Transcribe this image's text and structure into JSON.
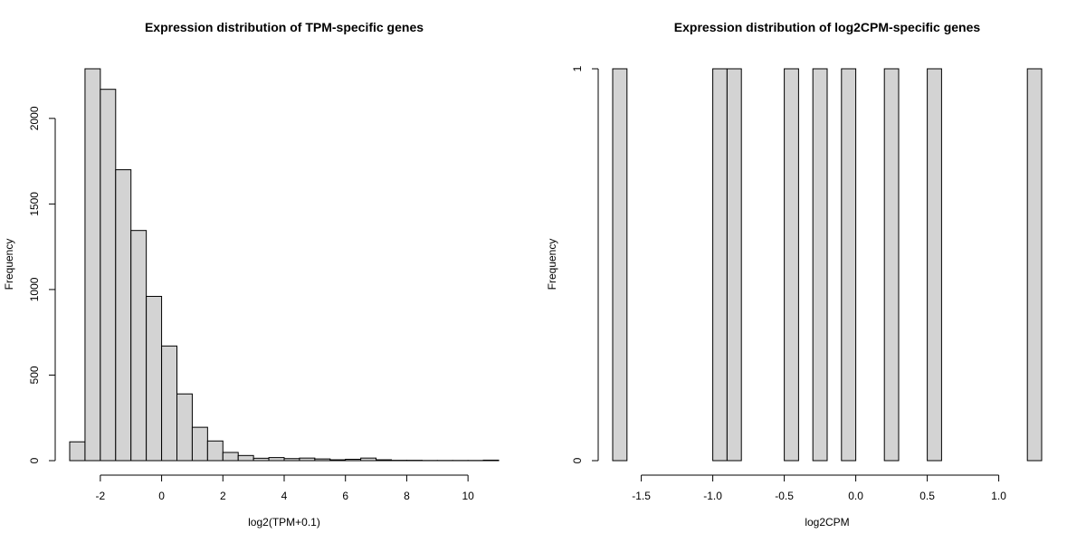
{
  "chart_data": [
    {
      "type": "bar",
      "title": "Expression distribution of TPM-specific genes",
      "xlabel": "log2(TPM+0.1)",
      "ylabel": "Frequency",
      "bin_width": 0.5,
      "bins": [
        {
          "start": -3.0,
          "count": 110
        },
        {
          "start": -2.5,
          "count": 2290
        },
        {
          "start": -2.0,
          "count": 2170
        },
        {
          "start": -1.5,
          "count": 1700
        },
        {
          "start": -1.0,
          "count": 1345
        },
        {
          "start": -0.5,
          "count": 960
        },
        {
          "start": 0.0,
          "count": 670
        },
        {
          "start": 0.5,
          "count": 390
        },
        {
          "start": 1.0,
          "count": 195
        },
        {
          "start": 1.5,
          "count": 115
        },
        {
          "start": 2.0,
          "count": 48
        },
        {
          "start": 2.5,
          "count": 30
        },
        {
          "start": 3.0,
          "count": 14
        },
        {
          "start": 3.5,
          "count": 18
        },
        {
          "start": 4.0,
          "count": 12
        },
        {
          "start": 4.5,
          "count": 15
        },
        {
          "start": 5.0,
          "count": 10
        },
        {
          "start": 5.5,
          "count": 5
        },
        {
          "start": 6.0,
          "count": 8
        },
        {
          "start": 6.5,
          "count": 15
        },
        {
          "start": 7.0,
          "count": 5
        },
        {
          "start": 7.5,
          "count": 2
        },
        {
          "start": 8.0,
          "count": 2
        },
        {
          "start": 8.5,
          "count": 1
        },
        {
          "start": 9.0,
          "count": 1
        },
        {
          "start": 9.5,
          "count": 1
        },
        {
          "start": 10.0,
          "count": 1
        },
        {
          "start": 10.5,
          "count": 3
        }
      ],
      "xlim": [
        -3.0,
        11.0
      ],
      "ylim": [
        0,
        2290
      ],
      "x_ticks": [
        -2,
        0,
        2,
        4,
        6,
        8,
        10
      ],
      "x_tick_labels": [
        "-2",
        "0",
        "2",
        "4",
        "6",
        "8",
        "10"
      ],
      "y_ticks": [
        0,
        500,
        1000,
        1500,
        2000
      ],
      "y_tick_labels": [
        "0",
        "500",
        "1000",
        "1500",
        "2000"
      ],
      "grid": false
    },
    {
      "type": "bar",
      "title": "Expression distribution of log2CPM-specific genes",
      "xlabel": "log2CPM",
      "ylabel": "Frequency",
      "bin_width": 0.1,
      "bins": [
        {
          "start": -1.7,
          "count": 1
        },
        {
          "start": -1.6,
          "count": 0
        },
        {
          "start": -1.5,
          "count": 0
        },
        {
          "start": -1.4,
          "count": 0
        },
        {
          "start": -1.3,
          "count": 0
        },
        {
          "start": -1.2,
          "count": 0
        },
        {
          "start": -1.1,
          "count": 0
        },
        {
          "start": -1.0,
          "count": 1
        },
        {
          "start": -0.9,
          "count": 1
        },
        {
          "start": -0.8,
          "count": 0
        },
        {
          "start": -0.7,
          "count": 0
        },
        {
          "start": -0.6,
          "count": 0
        },
        {
          "start": -0.5,
          "count": 1
        },
        {
          "start": -0.4,
          "count": 0
        },
        {
          "start": -0.3,
          "count": 1
        },
        {
          "start": -0.2,
          "count": 0
        },
        {
          "start": -0.1,
          "count": 1
        },
        {
          "start": 0.0,
          "count": 0
        },
        {
          "start": 0.1,
          "count": 0
        },
        {
          "start": 0.2,
          "count": 1
        },
        {
          "start": 0.3,
          "count": 0
        },
        {
          "start": 0.4,
          "count": 0
        },
        {
          "start": 0.5,
          "count": 1
        },
        {
          "start": 0.6,
          "count": 0
        },
        {
          "start": 0.7,
          "count": 0
        },
        {
          "start": 0.8,
          "count": 0
        },
        {
          "start": 0.9,
          "count": 0
        },
        {
          "start": 1.0,
          "count": 0
        },
        {
          "start": 1.1,
          "count": 0
        },
        {
          "start": 1.2,
          "count": 1
        }
      ],
      "xlim": [
        -1.7,
        1.3
      ],
      "ylim": [
        0,
        1
      ],
      "x_ticks": [
        -1.5,
        -1.0,
        -0.5,
        0.0,
        0.5,
        1.0
      ],
      "x_tick_labels": [
        "-1.5",
        "-1.0",
        "-0.5",
        "0.0",
        "0.5",
        "1.0"
      ],
      "y_ticks": [
        0,
        1
      ],
      "y_tick_labels": [
        "0",
        "1"
      ],
      "grid": false
    }
  ]
}
